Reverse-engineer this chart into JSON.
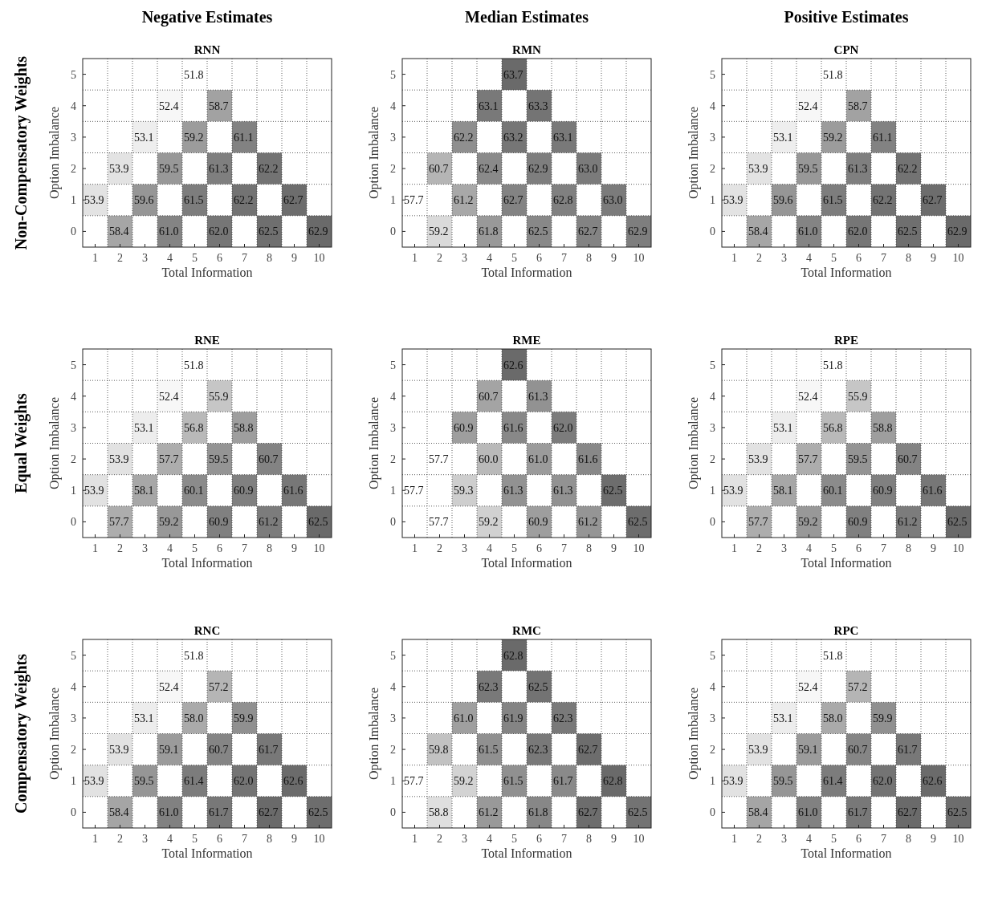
{
  "chart_data": [
    {
      "type": "heatmap",
      "title": "RNN",
      "xlabel": "Total Information",
      "ylabel": "Option Imbalance",
      "annotations": [
        "Negative Estimates",
        "Non-Compensatory Weights"
      ],
      "grid": true,
      "categories": [
        "1",
        "2",
        "3",
        "4",
        "5",
        "6",
        "7",
        "8",
        "9",
        "10"
      ],
      "y_categories": [
        "5",
        "4",
        "3",
        "2",
        "1",
        "0"
      ],
      "cells": [
        [
          null,
          null,
          null,
          null,
          51.8,
          null,
          null,
          null,
          null,
          null
        ],
        [
          null,
          null,
          null,
          52.4,
          null,
          58.7,
          null,
          null,
          null,
          null
        ],
        [
          null,
          null,
          53.1,
          null,
          59.2,
          null,
          61.1,
          null,
          null,
          null
        ],
        [
          null,
          53.9,
          null,
          59.5,
          null,
          61.3,
          null,
          62.2,
          null,
          null
        ],
        [
          53.9,
          null,
          59.6,
          null,
          61.5,
          null,
          62.2,
          null,
          62.7,
          null
        ],
        [
          null,
          58.4,
          null,
          61.0,
          null,
          62.0,
          null,
          62.5,
          null,
          62.9
        ]
      ],
      "cell_labels": [
        [
          null,
          null,
          null,
          null,
          "51.8",
          null,
          null,
          null,
          null,
          null
        ],
        [
          null,
          null,
          null,
          "52.4",
          null,
          "58.7",
          null,
          null,
          null,
          null
        ],
        [
          null,
          null,
          "53.1",
          null,
          "59.2",
          null,
          "61.1",
          null,
          null,
          null
        ],
        [
          null,
          "53.9",
          null,
          "59.5",
          null,
          "61.3",
          null,
          "62.2",
          null,
          null
        ],
        [
          "53.9",
          null,
          "59.6",
          null,
          "61.5",
          null,
          "62.2",
          null,
          "62.7",
          null
        ],
        [
          null,
          "58.4",
          null,
          "61.0",
          null,
          "62.0",
          null,
          "62.5",
          null,
          "62.9"
        ]
      ]
    },
    {
      "type": "heatmap",
      "title": "RMN",
      "xlabel": "Total Information",
      "ylabel": "Option Imbalance",
      "annotations": [
        "Median Estimates"
      ],
      "grid": true,
      "categories": [
        "1",
        "2",
        "3",
        "4",
        "5",
        "6",
        "7",
        "8",
        "9",
        "10"
      ],
      "y_categories": [
        "5",
        "4",
        "3",
        "2",
        "1",
        "0"
      ],
      "cells": [
        [
          null,
          null,
          null,
          null,
          63.7,
          null,
          null,
          null,
          null,
          null
        ],
        [
          null,
          null,
          null,
          63.1,
          null,
          63.3,
          null,
          null,
          null,
          null
        ],
        [
          null,
          null,
          62.2,
          null,
          63.2,
          null,
          63.1,
          null,
          null,
          null
        ],
        [
          null,
          60.7,
          null,
          62.4,
          null,
          62.9,
          null,
          63.0,
          null,
          null
        ],
        [
          57.7,
          null,
          61.2,
          null,
          62.7,
          null,
          62.8,
          null,
          63.0,
          null
        ],
        [
          null,
          59.2,
          null,
          61.8,
          null,
          62.5,
          null,
          62.7,
          null,
          62.9
        ]
      ],
      "cell_labels": [
        [
          null,
          null,
          null,
          null,
          "63.7",
          null,
          null,
          null,
          null,
          null
        ],
        [
          null,
          null,
          null,
          "63.1",
          null,
          "63.3",
          null,
          null,
          null,
          null
        ],
        [
          null,
          null,
          "62.2",
          null,
          "63.2",
          null,
          "63.1",
          null,
          null,
          null
        ],
        [
          null,
          "60.7",
          null,
          "62.4",
          null,
          "62.9",
          null,
          "63.0",
          null,
          null
        ],
        [
          "57.7",
          null,
          "61.2",
          null,
          "62.7",
          null,
          "62.8",
          null,
          "63.0",
          null
        ],
        [
          null,
          "59.2",
          null,
          "61.8",
          null,
          "62.5",
          null,
          "62.7",
          null,
          "62.9"
        ]
      ]
    },
    {
      "type": "heatmap",
      "title": "CPN",
      "xlabel": "Total Information",
      "ylabel": "Option Imbalance",
      "annotations": [
        "Positive Estimates"
      ],
      "grid": true,
      "categories": [
        "1",
        "2",
        "3",
        "4",
        "5",
        "6",
        "7",
        "8",
        "9",
        "10"
      ],
      "y_categories": [
        "5",
        "4",
        "3",
        "2",
        "1",
        "0"
      ],
      "cells": [
        [
          null,
          null,
          null,
          null,
          51.8,
          null,
          null,
          null,
          null,
          null
        ],
        [
          null,
          null,
          null,
          52.4,
          null,
          58.7,
          null,
          null,
          null,
          null
        ],
        [
          null,
          null,
          53.1,
          null,
          59.2,
          null,
          61.1,
          null,
          null,
          null
        ],
        [
          null,
          53.9,
          null,
          59.5,
          null,
          61.3,
          null,
          62.2,
          null,
          null
        ],
        [
          53.9,
          null,
          59.6,
          null,
          61.5,
          null,
          62.2,
          null,
          62.7,
          null
        ],
        [
          null,
          58.4,
          null,
          61.0,
          null,
          62.0,
          null,
          62.5,
          null,
          62.9
        ]
      ],
      "cell_labels": [
        [
          null,
          null,
          null,
          null,
          "51.8",
          null,
          null,
          null,
          null,
          null
        ],
        [
          null,
          null,
          null,
          "52.4",
          null,
          "58.7",
          null,
          null,
          null,
          null
        ],
        [
          null,
          null,
          "53.1",
          null,
          "59.2",
          null,
          "61.1",
          null,
          null,
          null
        ],
        [
          null,
          "53.9",
          null,
          "59.5",
          null,
          "61.3",
          null,
          "62.2",
          null,
          null
        ],
        [
          "53.9",
          null,
          "59.6",
          null,
          "61.5",
          null,
          "62.2",
          null,
          "62.7",
          null
        ],
        [
          null,
          "58.4",
          null,
          "61.0",
          null,
          "62.0",
          null,
          "62.5",
          null,
          "62.9"
        ]
      ]
    },
    {
      "type": "heatmap",
      "title": "RNE",
      "xlabel": "Total Information",
      "ylabel": "Option Imbalance",
      "annotations": [
        "Equal Weights"
      ],
      "grid": true,
      "categories": [
        "1",
        "2",
        "3",
        "4",
        "5",
        "6",
        "7",
        "8",
        "9",
        "10"
      ],
      "y_categories": [
        "5",
        "4",
        "3",
        "2",
        "1",
        "0"
      ],
      "cells": [
        [
          null,
          null,
          null,
          null,
          51.8,
          null,
          null,
          null,
          null,
          null
        ],
        [
          null,
          null,
          null,
          52.4,
          null,
          55.9,
          null,
          null,
          null,
          null
        ],
        [
          null,
          null,
          53.1,
          null,
          56.8,
          null,
          58.8,
          null,
          null,
          null
        ],
        [
          null,
          53.9,
          null,
          57.7,
          null,
          59.5,
          null,
          60.7,
          null,
          null
        ],
        [
          53.9,
          null,
          58.1,
          null,
          60.1,
          null,
          60.9,
          null,
          61.6,
          null
        ],
        [
          null,
          57.7,
          null,
          59.2,
          null,
          60.9,
          null,
          61.2,
          null,
          62.5
        ]
      ],
      "cell_labels": [
        [
          null,
          null,
          null,
          null,
          "51.8",
          null,
          null,
          null,
          null,
          null
        ],
        [
          null,
          null,
          null,
          "52.4",
          null,
          "55.9",
          null,
          null,
          null,
          null
        ],
        [
          null,
          null,
          "53.1",
          null,
          "56.8",
          null,
          "58.8",
          null,
          null,
          null
        ],
        [
          null,
          "53.9",
          null,
          "57.7",
          null,
          "59.5",
          null,
          "60.7",
          null,
          null
        ],
        [
          "53.9",
          null,
          "58.1",
          null,
          "60.1",
          null,
          "60.9",
          null,
          "61.6",
          null
        ],
        [
          null,
          "57.7",
          null,
          "59.2",
          null,
          "60.9",
          null,
          "61.2",
          null,
          "62.5"
        ]
      ]
    },
    {
      "type": "heatmap",
      "title": "RME",
      "xlabel": "Total Information",
      "ylabel": "Option Imbalance",
      "grid": true,
      "categories": [
        "1",
        "2",
        "3",
        "4",
        "5",
        "6",
        "7",
        "8",
        "9",
        "10"
      ],
      "y_categories": [
        "5",
        "4",
        "3",
        "2",
        "1",
        "0"
      ],
      "cells": [
        [
          null,
          null,
          null,
          null,
          62.6,
          null,
          null,
          null,
          null,
          null
        ],
        [
          null,
          null,
          null,
          60.7,
          null,
          61.3,
          null,
          null,
          null,
          null
        ],
        [
          null,
          null,
          60.9,
          null,
          61.6,
          null,
          62.0,
          null,
          null,
          null
        ],
        [
          null,
          57.7,
          null,
          60.0,
          null,
          61.0,
          null,
          61.6,
          null,
          null
        ],
        [
          57.7,
          null,
          59.3,
          null,
          61.3,
          null,
          61.3,
          null,
          62.5,
          null
        ],
        [
          null,
          57.7,
          null,
          59.2,
          null,
          60.9,
          null,
          61.2,
          null,
          62.5
        ]
      ],
      "cell_labels": [
        [
          null,
          null,
          null,
          null,
          "62.6",
          null,
          null,
          null,
          null,
          null
        ],
        [
          null,
          null,
          null,
          "60.7",
          null,
          "61.3",
          null,
          null,
          null,
          null
        ],
        [
          null,
          null,
          "60.9",
          null,
          "61.6",
          null,
          "62.0",
          null,
          null,
          null
        ],
        [
          null,
          "57.7",
          null,
          "60.0",
          null,
          "61.0",
          null,
          "61.6",
          null,
          null
        ],
        [
          "57.7",
          null,
          "59.3",
          null,
          "61.3",
          null,
          "61.3",
          null,
          "62.5",
          null
        ],
        [
          null,
          "57.7",
          null,
          "59.2",
          null,
          "60.9",
          null,
          "61.2",
          null,
          "62.5"
        ]
      ]
    },
    {
      "type": "heatmap",
      "title": "RPE",
      "xlabel": "Total Information",
      "ylabel": "Option Imbalance",
      "grid": true,
      "categories": [
        "1",
        "2",
        "3",
        "4",
        "5",
        "6",
        "7",
        "8",
        "9",
        "10"
      ],
      "y_categories": [
        "5",
        "4",
        "3",
        "2",
        "1",
        "0"
      ],
      "cells": [
        [
          null,
          null,
          null,
          null,
          51.8,
          null,
          null,
          null,
          null,
          null
        ],
        [
          null,
          null,
          null,
          52.4,
          null,
          55.9,
          null,
          null,
          null,
          null
        ],
        [
          null,
          null,
          53.1,
          null,
          56.8,
          null,
          58.8,
          null,
          null,
          null
        ],
        [
          null,
          53.9,
          null,
          57.7,
          null,
          59.5,
          null,
          60.7,
          null,
          null
        ],
        [
          53.9,
          null,
          58.1,
          null,
          60.1,
          null,
          60.9,
          null,
          61.6,
          null
        ],
        [
          null,
          57.7,
          null,
          59.2,
          null,
          60.9,
          null,
          61.2,
          null,
          62.5
        ]
      ],
      "cell_labels": [
        [
          null,
          null,
          null,
          null,
          "51.8",
          null,
          null,
          null,
          null,
          null
        ],
        [
          null,
          null,
          null,
          "52.4",
          null,
          "55.9",
          null,
          null,
          null,
          null
        ],
        [
          null,
          null,
          "53.1",
          null,
          "56.8",
          null,
          "58.8",
          null,
          null,
          null
        ],
        [
          null,
          "53.9",
          null,
          "57.7",
          null,
          "59.5",
          null,
          "60.7",
          null,
          null
        ],
        [
          "53.9",
          null,
          "58.1",
          null,
          "60.1",
          null,
          "60.9",
          null,
          "61.6",
          null
        ],
        [
          null,
          "57.7",
          null,
          "59.2",
          null,
          "60.9",
          null,
          "61.2",
          null,
          "62.5"
        ]
      ]
    },
    {
      "type": "heatmap",
      "title": "RNC",
      "xlabel": "Total Information",
      "ylabel": "Option Imbalance",
      "annotations": [
        "Compensatory Weights"
      ],
      "grid": true,
      "categories": [
        "1",
        "2",
        "3",
        "4",
        "5",
        "6",
        "7",
        "8",
        "9",
        "10"
      ],
      "y_categories": [
        "5",
        "4",
        "3",
        "2",
        "1",
        "0"
      ],
      "cells": [
        [
          null,
          null,
          null,
          null,
          51.8,
          null,
          null,
          null,
          null,
          null
        ],
        [
          null,
          null,
          null,
          52.4,
          null,
          57.2,
          null,
          null,
          null,
          null
        ],
        [
          null,
          null,
          53.1,
          null,
          58.0,
          null,
          59.9,
          null,
          null,
          null
        ],
        [
          null,
          53.9,
          null,
          59.1,
          null,
          60.7,
          null,
          61.7,
          null,
          null
        ],
        [
          53.9,
          null,
          59.5,
          null,
          61.4,
          null,
          62.0,
          null,
          62.6,
          null
        ],
        [
          null,
          58.4,
          null,
          61.0,
          null,
          61.7,
          null,
          62.7,
          null,
          62.5
        ]
      ],
      "cell_labels": [
        [
          null,
          null,
          null,
          null,
          "51.8",
          null,
          null,
          null,
          null,
          null
        ],
        [
          null,
          null,
          null,
          "52.4",
          null,
          "57.2",
          null,
          null,
          null,
          null
        ],
        [
          null,
          null,
          "53.1",
          null,
          "58.0",
          null,
          "59.9",
          null,
          null,
          null
        ],
        [
          null,
          "53.9",
          null,
          "59.1",
          null,
          "60.7",
          null,
          "61.7",
          null,
          null
        ],
        [
          "53.9",
          null,
          "59.5",
          null,
          "61.4",
          null,
          "62.0",
          null,
          "62.6",
          null
        ],
        [
          null,
          "58.4",
          null,
          "61.0",
          null,
          "61.7",
          null,
          "62.7",
          null,
          "62.5"
        ]
      ]
    },
    {
      "type": "heatmap",
      "title": "RMC",
      "xlabel": "Total Information",
      "ylabel": "Option Imbalance",
      "grid": true,
      "categories": [
        "1",
        "2",
        "3",
        "4",
        "5",
        "6",
        "7",
        "8",
        "9",
        "10"
      ],
      "y_categories": [
        "5",
        "4",
        "3",
        "2",
        "1",
        "0"
      ],
      "cells": [
        [
          null,
          null,
          null,
          null,
          62.8,
          null,
          null,
          null,
          null,
          null
        ],
        [
          null,
          null,
          null,
          62.3,
          null,
          62.5,
          null,
          null,
          null,
          null
        ],
        [
          null,
          null,
          61.0,
          null,
          61.9,
          null,
          62.3,
          null,
          null,
          null
        ],
        [
          null,
          59.8,
          null,
          61.5,
          null,
          62.3,
          null,
          62.7,
          null,
          null
        ],
        [
          57.7,
          null,
          59.2,
          null,
          61.5,
          null,
          61.7,
          null,
          62.8,
          null
        ],
        [
          null,
          58.8,
          null,
          61.2,
          null,
          61.8,
          null,
          62.7,
          null,
          62.5
        ]
      ],
      "cell_labels": [
        [
          null,
          null,
          null,
          null,
          "62.8",
          null,
          null,
          null,
          null,
          null
        ],
        [
          null,
          null,
          null,
          "62.3",
          null,
          "62.5",
          null,
          null,
          null,
          null
        ],
        [
          null,
          null,
          "61.0",
          null,
          "61.9",
          null,
          "62.3",
          null,
          null,
          null
        ],
        [
          null,
          "59.8",
          null,
          "61.5",
          null,
          "62.3",
          null,
          "62.7",
          null,
          null
        ],
        [
          "57.7",
          null,
          "59.2",
          null,
          "61.5",
          null,
          "61.7",
          null,
          "62.8",
          null
        ],
        [
          null,
          "58.8",
          null,
          "61.2",
          null,
          "61.8",
          null,
          "62.7",
          null,
          "62.5"
        ]
      ]
    },
    {
      "type": "heatmap",
      "title": "RPC",
      "xlabel": "Total Information",
      "ylabel": "Option Imbalance",
      "grid": true,
      "categories": [
        "1",
        "2",
        "3",
        "4",
        "5",
        "6",
        "7",
        "8",
        "9",
        "10"
      ],
      "y_categories": [
        "5",
        "4",
        "3",
        "2",
        "1",
        "0"
      ],
      "cells": [
        [
          null,
          null,
          null,
          null,
          51.8,
          null,
          null,
          null,
          null,
          null
        ],
        [
          null,
          null,
          null,
          52.4,
          null,
          57.2,
          null,
          null,
          null,
          null
        ],
        [
          null,
          null,
          53.1,
          null,
          58.0,
          null,
          59.9,
          null,
          null,
          null
        ],
        [
          null,
          53.9,
          null,
          59.1,
          null,
          60.7,
          null,
          61.7,
          null,
          null
        ],
        [
          53.9,
          null,
          59.5,
          null,
          61.4,
          null,
          62.0,
          null,
          62.6,
          null
        ],
        [
          null,
          58.4,
          null,
          61.0,
          null,
          61.7,
          null,
          62.7,
          null,
          62.5
        ]
      ],
      "cell_labels": [
        [
          null,
          null,
          null,
          null,
          "51.8",
          null,
          null,
          null,
          null,
          null
        ],
        [
          null,
          null,
          null,
          "52.4",
          null,
          "57.2",
          null,
          null,
          null,
          null
        ],
        [
          null,
          null,
          "53.1",
          null,
          "58.0",
          null,
          "59.9",
          null,
          null,
          null
        ],
        [
          null,
          "53.9",
          null,
          "59.1",
          null,
          "60.7",
          null,
          "61.7",
          null,
          null
        ],
        [
          "53.9",
          null,
          "59.5",
          null,
          "61.4",
          null,
          "62.0",
          null,
          "62.6",
          null
        ],
        [
          null,
          "58.4",
          null,
          "61.0",
          null,
          "61.7",
          null,
          "62.7",
          null,
          "62.5"
        ]
      ]
    }
  ]
}
